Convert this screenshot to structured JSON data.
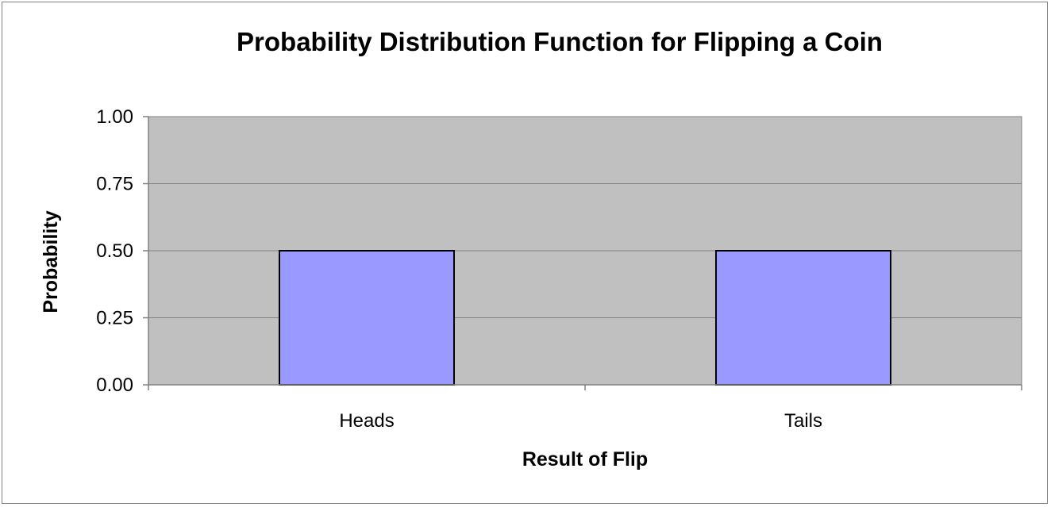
{
  "chart_data": {
    "type": "bar",
    "title": "Probability Distribution Function for Flipping a Coin",
    "xlabel": "Result of Flip",
    "ylabel": "Probability",
    "categories": [
      "Heads",
      "Tails"
    ],
    "values": [
      0.5,
      0.5
    ],
    "ylim": [
      0,
      1
    ],
    "yticks": [
      "0.00",
      "0.25",
      "0.50",
      "0.75",
      "1.00"
    ],
    "ytick_values": [
      0,
      0.25,
      0.5,
      0.75,
      1
    ],
    "grid": true,
    "legend": "none",
    "colors": {
      "bar_fill": "#9999ff",
      "bar_stroke": "#000000",
      "plot_background": "#c0c0c0",
      "gridline": "#808080",
      "axis": "#808080"
    }
  }
}
